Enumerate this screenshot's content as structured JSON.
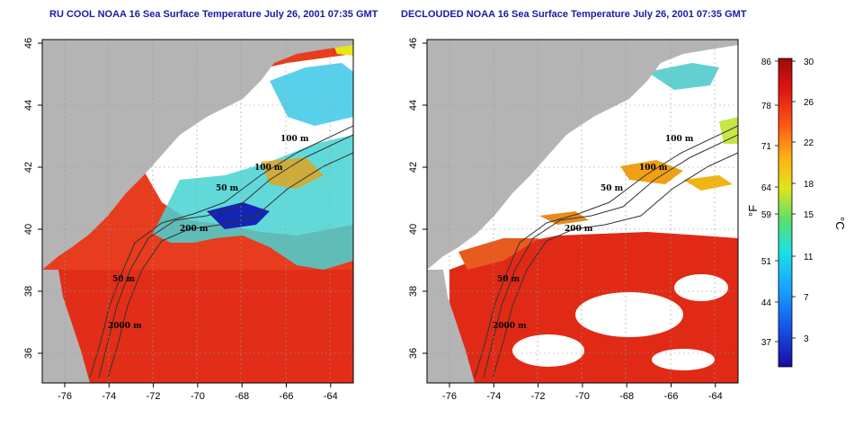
{
  "panels": [
    {
      "id": "left",
      "title": "RU COOL NOAA 16 Sea Surface Temperature July 26, 2001 07:35 GMT",
      "x_ticks": [
        "-76",
        "-74",
        "-72",
        "-70",
        "-68",
        "-66",
        "-64"
      ],
      "y_ticks": [
        "46",
        "44",
        "42",
        "40",
        "38",
        "36"
      ],
      "isobath_labels": [
        "100 m",
        "100 m",
        "50 m",
        "200 m",
        "50 m",
        "2000 m"
      ]
    },
    {
      "id": "right",
      "title": "DECLOUDED NOAA 16 Sea Surface Temperature July 26, 2001 07:35 GMT",
      "x_ticks": [
        "-76",
        "-74",
        "-72",
        "-70",
        "-68",
        "-66",
        "-64"
      ],
      "y_ticks": [
        "46",
        "44",
        "42",
        "40",
        "38",
        "36"
      ],
      "isobath_labels": [
        "100 m",
        "100 m",
        "50 m",
        "200 m",
        "50 m",
        "2000 m"
      ]
    }
  ],
  "colorbar": {
    "fahrenheit_ticks": [
      "86",
      "78",
      "71",
      "64",
      "59",
      "51",
      "44",
      "37"
    ],
    "celsius_ticks": [
      "30",
      "26",
      "22",
      "18",
      "15",
      "11",
      "7",
      "3"
    ],
    "fahrenheit_unit": "°F",
    "celsius_unit": "°C",
    "colors": [
      "#1c0a9e",
      "#1450e6",
      "#1aa0ff",
      "#19e0e6",
      "#5de06a",
      "#e0e619",
      "#ffb014",
      "#ff5a14",
      "#e01414",
      "#9e0a0a"
    ]
  },
  "map_colors": {
    "land": "#b4b4b4",
    "ocean_warm": "#e83c1e",
    "ocean_hot": "#dc2814",
    "cloud_white": "#ffffff"
  }
}
